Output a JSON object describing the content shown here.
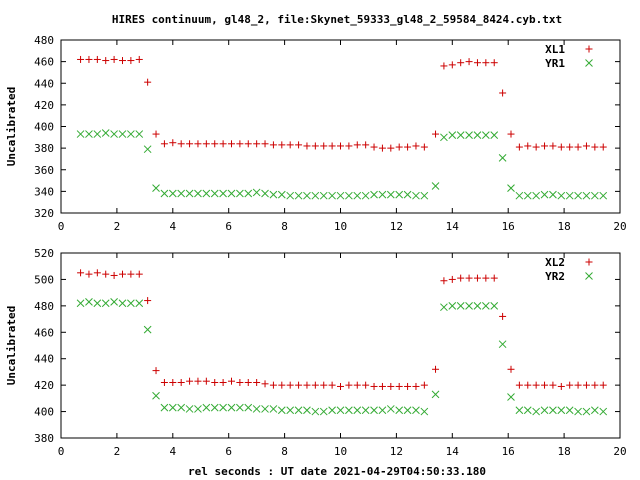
{
  "page": {
    "title": "HIRES continuum, gl48_2, file:Skynet_59333_gl48_2_59584_8424.cyb.txt",
    "xlabel": "rel seconds : UT date 2021-04-29T04:50:33.180"
  },
  "colors": {
    "series_red": "#cc0000",
    "series_green": "#33aa33",
    "axis": "#000000",
    "background": "#ffffff"
  },
  "chart_data": [
    {
      "type": "scatter",
      "ylabel": "Uncalibrated",
      "xlim": [
        0,
        20
      ],
      "ylim": [
        320,
        480
      ],
      "xticks": [
        0,
        2,
        4,
        6,
        8,
        10,
        12,
        14,
        16,
        18,
        20
      ],
      "yticks": [
        320,
        340,
        360,
        380,
        400,
        420,
        440,
        460,
        480
      ],
      "legend_position": "top-right",
      "grid": false,
      "series": [
        {
          "name": "XL1",
          "marker": "plus",
          "color": "#cc0000",
          "x": [
            0.7,
            1.0,
            1.3,
            1.6,
            1.9,
            2.2,
            2.5,
            2.8,
            3.1,
            3.4,
            3.7,
            4.0,
            4.3,
            4.6,
            4.9,
            5.2,
            5.5,
            5.8,
            6.1,
            6.4,
            6.7,
            7.0,
            7.3,
            7.6,
            7.9,
            8.2,
            8.5,
            8.8,
            9.1,
            9.4,
            9.7,
            10.0,
            10.3,
            10.6,
            10.9,
            11.2,
            11.5,
            11.8,
            12.1,
            12.4,
            12.7,
            13.0,
            13.4,
            13.7,
            14.0,
            14.3,
            14.6,
            14.9,
            15.2,
            15.5,
            15.8,
            16.1,
            16.4,
            16.7,
            17.0,
            17.3,
            17.6,
            17.9,
            18.2,
            18.5,
            18.8,
            19.1,
            19.4
          ],
          "y": [
            462,
            462,
            462,
            461,
            462,
            461,
            461,
            462,
            441,
            393,
            384,
            385,
            384,
            384,
            384,
            384,
            384,
            384,
            384,
            384,
            384,
            384,
            384,
            383,
            383,
            383,
            383,
            382,
            382,
            382,
            382,
            382,
            382,
            383,
            383,
            381,
            380,
            380,
            381,
            381,
            382,
            381,
            393,
            456,
            457,
            459,
            460,
            459,
            459,
            459,
            431,
            393,
            381,
            382,
            381,
            382,
            382,
            381,
            381,
            381,
            382,
            381,
            381
          ]
        },
        {
          "name": "YR1",
          "marker": "cross",
          "color": "#33aa33",
          "x": [
            0.7,
            1.0,
            1.3,
            1.6,
            1.9,
            2.2,
            2.5,
            2.8,
            3.1,
            3.4,
            3.7,
            4.0,
            4.3,
            4.6,
            4.9,
            5.2,
            5.5,
            5.8,
            6.1,
            6.4,
            6.7,
            7.0,
            7.3,
            7.6,
            7.9,
            8.2,
            8.5,
            8.8,
            9.1,
            9.4,
            9.7,
            10.0,
            10.3,
            10.6,
            10.9,
            11.2,
            11.5,
            11.8,
            12.1,
            12.4,
            12.7,
            13.0,
            13.4,
            13.7,
            14.0,
            14.3,
            14.6,
            14.9,
            15.2,
            15.5,
            15.8,
            16.1,
            16.4,
            16.7,
            17.0,
            17.3,
            17.6,
            17.9,
            18.2,
            18.5,
            18.8,
            19.1,
            19.4
          ],
          "y": [
            393,
            393,
            393,
            394,
            393,
            393,
            393,
            393,
            379,
            343,
            338,
            338,
            338,
            338,
            338,
            338,
            338,
            338,
            338,
            338,
            338,
            339,
            338,
            337,
            337,
            336,
            336,
            336,
            336,
            336,
            336,
            336,
            336,
            336,
            336,
            337,
            337,
            337,
            337,
            337,
            336,
            336,
            345,
            390,
            392,
            392,
            392,
            392,
            392,
            392,
            371,
            343,
            336,
            336,
            336,
            337,
            337,
            336,
            336,
            336,
            336,
            336,
            336
          ]
        }
      ]
    },
    {
      "type": "scatter",
      "ylabel": "Uncalibrated",
      "xlim": [
        0,
        20
      ],
      "ylim": [
        380,
        520
      ],
      "xticks": [
        0,
        2,
        4,
        6,
        8,
        10,
        12,
        14,
        16,
        18,
        20
      ],
      "yticks": [
        380,
        400,
        420,
        440,
        460,
        480,
        500,
        520
      ],
      "legend_position": "top-right",
      "grid": false,
      "series": [
        {
          "name": "XL2",
          "marker": "plus",
          "color": "#cc0000",
          "x": [
            0.7,
            1.0,
            1.3,
            1.6,
            1.9,
            2.2,
            2.5,
            2.8,
            3.1,
            3.4,
            3.7,
            4.0,
            4.3,
            4.6,
            4.9,
            5.2,
            5.5,
            5.8,
            6.1,
            6.4,
            6.7,
            7.0,
            7.3,
            7.6,
            7.9,
            8.2,
            8.5,
            8.8,
            9.1,
            9.4,
            9.7,
            10.0,
            10.3,
            10.6,
            10.9,
            11.2,
            11.5,
            11.8,
            12.1,
            12.4,
            12.7,
            13.0,
            13.4,
            13.7,
            14.0,
            14.3,
            14.6,
            14.9,
            15.2,
            15.5,
            15.8,
            16.1,
            16.4,
            16.7,
            17.0,
            17.3,
            17.6,
            17.9,
            18.2,
            18.5,
            18.8,
            19.1,
            19.4
          ],
          "y": [
            505,
            504,
            505,
            504,
            503,
            504,
            504,
            504,
            484,
            431,
            422,
            422,
            422,
            423,
            423,
            423,
            422,
            422,
            423,
            422,
            422,
            422,
            421,
            420,
            420,
            420,
            420,
            420,
            420,
            420,
            420,
            419,
            420,
            420,
            420,
            419,
            419,
            419,
            419,
            419,
            419,
            420,
            432,
            499,
            500,
            501,
            501,
            501,
            501,
            501,
            472,
            432,
            420,
            420,
            420,
            420,
            420,
            419,
            420,
            420,
            420,
            420,
            420
          ]
        },
        {
          "name": "YR2",
          "marker": "cross",
          "color": "#33aa33",
          "x": [
            0.7,
            1.0,
            1.3,
            1.6,
            1.9,
            2.2,
            2.5,
            2.8,
            3.1,
            3.4,
            3.7,
            4.0,
            4.3,
            4.6,
            4.9,
            5.2,
            5.5,
            5.8,
            6.1,
            6.4,
            6.7,
            7.0,
            7.3,
            7.6,
            7.9,
            8.2,
            8.5,
            8.8,
            9.1,
            9.4,
            9.7,
            10.0,
            10.3,
            10.6,
            10.9,
            11.2,
            11.5,
            11.8,
            12.1,
            12.4,
            12.7,
            13.0,
            13.4,
            13.7,
            14.0,
            14.3,
            14.6,
            14.9,
            15.2,
            15.5,
            15.8,
            16.1,
            16.4,
            16.7,
            17.0,
            17.3,
            17.6,
            17.9,
            18.2,
            18.5,
            18.8,
            19.1,
            19.4
          ],
          "y": [
            482,
            483,
            482,
            482,
            483,
            482,
            482,
            482,
            462,
            412,
            403,
            403,
            403,
            402,
            402,
            403,
            403,
            403,
            403,
            403,
            403,
            402,
            402,
            402,
            401,
            401,
            401,
            401,
            400,
            400,
            401,
            401,
            401,
            401,
            401,
            401,
            401,
            402,
            401,
            401,
            401,
            400,
            413,
            479,
            480,
            480,
            480,
            480,
            480,
            480,
            451,
            411,
            401,
            401,
            400,
            401,
            401,
            401,
            401,
            400,
            400,
            401,
            400
          ]
        }
      ]
    }
  ]
}
